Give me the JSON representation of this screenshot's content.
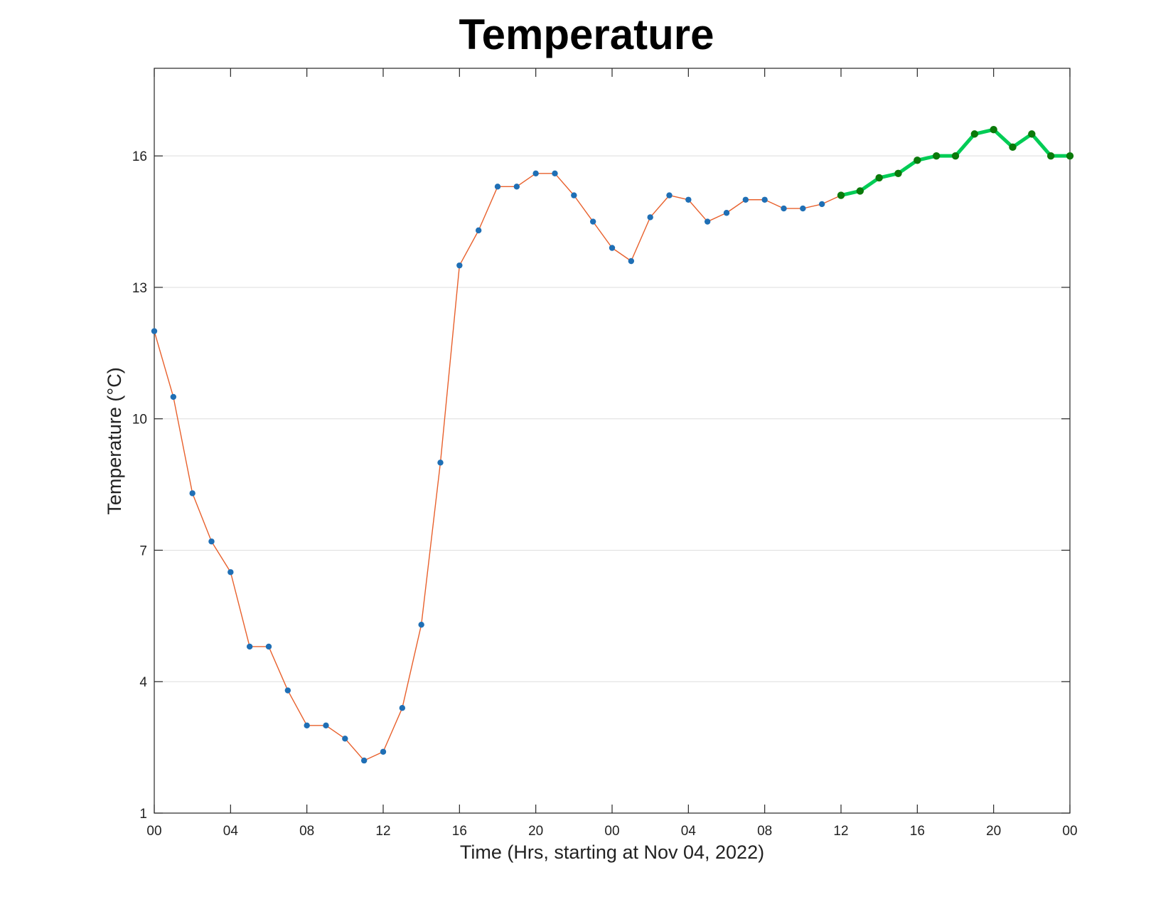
{
  "chart_data": {
    "type": "line",
    "title": "Temperature",
    "xlabel": "Time (Hrs, starting at Nov 04, 2022)",
    "ylabel": "Temperature (°C)",
    "xlim": [
      0,
      48
    ],
    "ylim": [
      1,
      18
    ],
    "yticks": [
      1,
      4,
      7,
      10,
      13,
      16
    ],
    "xticks": [
      0,
      4,
      8,
      12,
      16,
      20,
      24,
      28,
      32,
      36,
      40,
      44,
      48
    ],
    "xtick_labels": [
      "00",
      "04",
      "08",
      "12",
      "16",
      "20",
      "00",
      "04",
      "08",
      "12",
      "16",
      "20",
      "00"
    ],
    "grid": "y",
    "series": [
      {
        "x": [
          0,
          1,
          2,
          3,
          4,
          5,
          6,
          7,
          8,
          9,
          10,
          11,
          12,
          13,
          14,
          15,
          16,
          17,
          18,
          19,
          20,
          21,
          22,
          23,
          24,
          25,
          26,
          27,
          28,
          29,
          30,
          31,
          32,
          33,
          34,
          35,
          36
        ],
        "values": [
          12.0,
          10.5,
          8.3,
          7.2,
          6.5,
          4.8,
          4.8,
          3.8,
          3.0,
          3.0,
          2.7,
          2.2,
          2.4,
          3.4,
          5.3,
          9.0,
          13.5,
          14.3,
          15.3,
          15.3,
          15.6,
          15.6,
          15.1,
          14.5,
          13.9,
          13.6,
          14.6,
          15.1,
          15.0,
          14.5,
          14.7,
          15.0,
          15.0,
          14.8,
          14.8,
          14.9,
          15.1
        ],
        "line_color": "#e8602c",
        "marker_color": "#1f6fb5"
      },
      {
        "x": [
          36,
          37,
          38,
          39,
          40,
          41,
          42,
          43,
          44,
          45,
          46,
          47,
          48
        ],
        "values": [
          15.1,
          15.2,
          15.5,
          15.6,
          15.9,
          16.0,
          16.0,
          16.5,
          16.6,
          16.2,
          16.5,
          16.0,
          16.0
        ],
        "line_color": "#00cc55",
        "marker_color": "#0a7a0a"
      }
    ]
  }
}
